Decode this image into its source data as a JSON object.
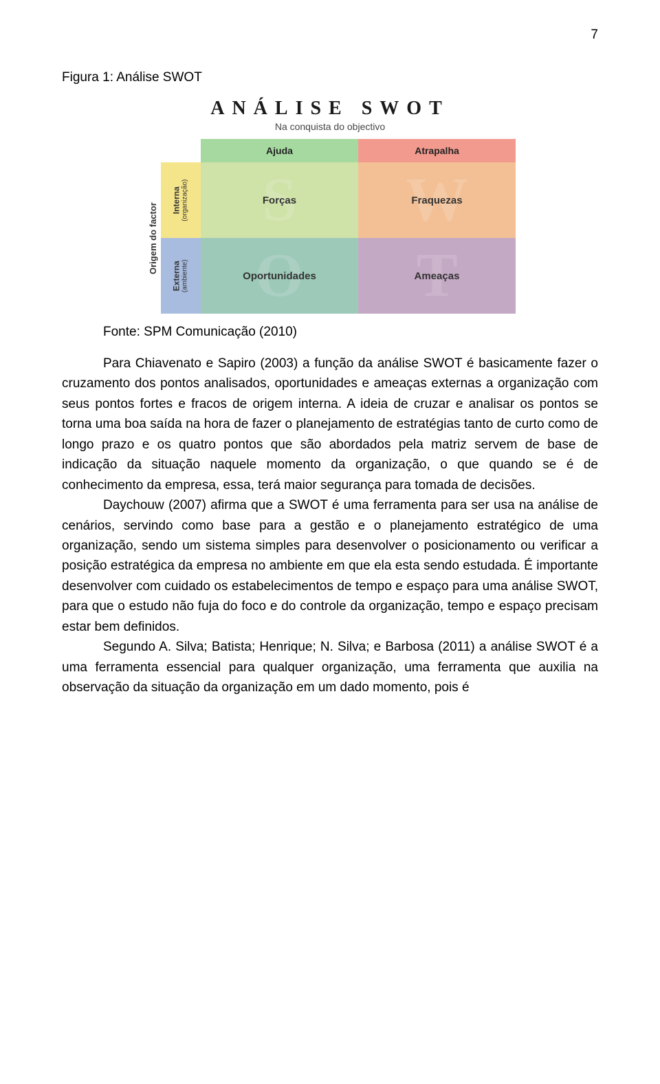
{
  "page_number": "7",
  "figure_caption": "Figura 1: Análise SWOT",
  "swot": {
    "title": "ANÁLISE SWOT",
    "subtitle": "Na conquista do objectivo",
    "side_axis_label": "Origem do factor",
    "col_headers": {
      "helps": {
        "label": "Ajuda",
        "bg": "#a6d9a0"
      },
      "hurts": {
        "label": "Atrapalha",
        "bg": "#f39a8e"
      }
    },
    "row_headers": {
      "internal": {
        "label": "Interna",
        "sublabel": "(organização)",
        "bg": "#f5e58a"
      },
      "external": {
        "label": "Externa",
        "sublabel": "(ambiente)",
        "bg": "#a8bce0"
      }
    },
    "quadrants": {
      "s": {
        "label": "Forças",
        "letter": "S",
        "bg": "#cfe2a8"
      },
      "w": {
        "label": "Fraquezas",
        "letter": "W",
        "bg": "#f3c096"
      },
      "o": {
        "label": "Oportunidades",
        "letter": "O",
        "bg": "#9dc9b9"
      },
      "t": {
        "label": "Ameaças",
        "letter": "T",
        "bg": "#c4a9c4"
      }
    }
  },
  "source_line": "Fonte: SPM Comunicação (2010)",
  "paragraphs": {
    "p1": "Para Chiavenato e Sapiro (2003) a função da análise SWOT é basicamente fazer o cruzamento dos pontos analisados, oportunidades e ameaças externas a organização com seus pontos fortes e fracos de origem interna. A ideia de cruzar e analisar os pontos se torna uma boa saída na hora de fazer o planejamento de estratégias tanto de curto como de longo prazo e os quatro pontos que são abordados pela matriz servem de base de indicação da situação naquele momento da organização, o que quando se é de conhecimento da empresa, essa, terá maior segurança para tomada de decisões.",
    "p2": "Daychouw (2007) afirma que a SWOT é uma ferramenta para ser usa na análise de cenários, servindo como base para a gestão e o planejamento estratégico de uma organização, sendo um sistema simples para desenvolver o posicionamento ou verificar a posição estratégica da empresa no ambiente em que ela esta sendo estudada. É importante desenvolver com cuidado os estabelecimentos de tempo e espaço para uma análise SWOT, para que o estudo não fuja do foco e do controle da organização, tempo e espaço precisam estar bem definidos.",
    "p3": "Segundo A. Silva; Batista; Henrique; N. Silva; e Barbosa (2011) a análise SWOT é a uma ferramenta essencial para qualquer organização, uma ferramenta que auxilia na observação da situação da organização em um dado momento, pois é"
  }
}
